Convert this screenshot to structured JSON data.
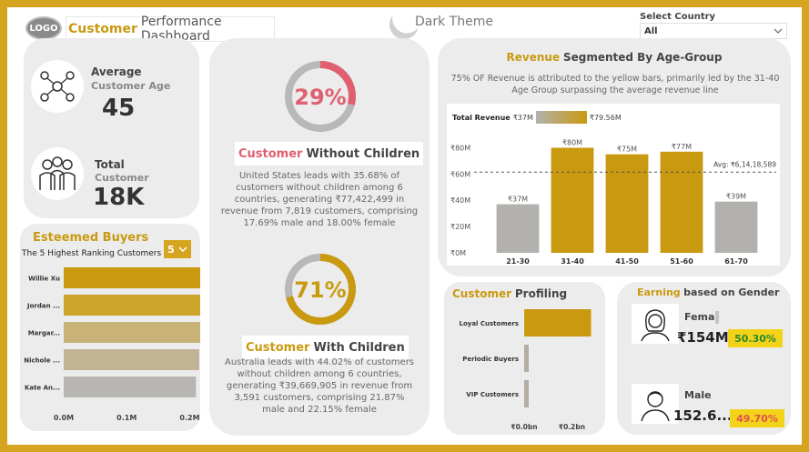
{
  "header": {
    "logo": "LOGO",
    "title_accent": "Customer",
    "title_rest": "Performance Dashboard",
    "theme_label": "Dark Theme",
    "country_label": "Select Country",
    "country_value": "All"
  },
  "age": {
    "avg_label1": "Average",
    "avg_label2": "Customer Age",
    "avg_value": "45",
    "total_label1": "Total",
    "total_label2": "Customer",
    "total_value": "18K"
  },
  "without_children": {
    "percent": "29%",
    "fraction": 0.29,
    "title_accent": "Customer",
    "title_rest": "Without Children",
    "desc": "United States leads with 35.68% of customers without children among 6 countries, generating ₹77,422,499 in revenue from 7,819 customers, comprising 17.69% male and 18.00% female"
  },
  "with_children": {
    "percent": "71%",
    "fraction": 0.71,
    "title_accent": "Customer",
    "title_rest": "With Children",
    "desc": "Australia leads with 44.02% of customers without children among 6 countries, generating ₹39,669,905 in revenue from 3,591 customers, comprising 21.87% male and 22.15% female"
  },
  "esteemed": {
    "title": "Esteemed Buyers",
    "subtitle": "The 5 Highest Ranking Customers",
    "top_n": "5"
  },
  "revenue": {
    "title_accent": "Revenue",
    "title_rest": "Segmented By Age-Group",
    "desc": "75% OF Revenue is attributed to the yellow bars, primarily led by the 31-40 Age Group surpassing the average revenue line",
    "legend_label": "Total Revenue",
    "legend_min": "₹37M",
    "legend_max": "₹79.56M",
    "avg_label": "Avg: ₹6,14,18,589"
  },
  "profiling": {
    "title_accent": "Customer",
    "title_rest": "Profiling"
  },
  "gender": {
    "title_accent": "Earning",
    "title_rest": "based on Gender",
    "female_label": "Femal",
    "female_value": "₹154M",
    "female_pct": "50.30%",
    "male_label": "Male",
    "male_value": "152.6...",
    "male_pct": "49.70%"
  },
  "colors": {
    "gold": "#c99a10",
    "grey_bar": "#b3b1ad",
    "frame": "#d6a520",
    "green_badge": "#f3d21a",
    "red_text": "#e25050"
  },
  "chart_data": [
    {
      "type": "bar",
      "categories": [
        "21-30",
        "31-40",
        "41-50",
        "51-60",
        "61-70"
      ],
      "values": [
        37,
        80,
        75,
        77,
        39
      ],
      "data_labels": [
        "₹37M",
        "₹80M",
        "₹75M",
        "₹77M",
        "₹39M"
      ],
      "average": 61.42,
      "ylim": [
        0,
        90
      ],
      "yticks": [
        "₹0M",
        "₹20M",
        "₹40M",
        "₹60M",
        "₹80M"
      ],
      "ytick_values": [
        0,
        20,
        40,
        60,
        80
      ],
      "highlight": [
        false,
        true,
        true,
        true,
        false
      ]
    },
    {
      "type": "bar",
      "orientation": "horizontal",
      "categories": [
        "Willie Xu",
        "Jordan ...",
        "Margar...",
        "Nichole ...",
        "Kate An..."
      ],
      "values": [
        0.235,
        0.23,
        0.22,
        0.215,
        0.21
      ],
      "xticks": [
        "0.0M",
        "0.1M",
        "0.2M"
      ],
      "xtick_values": [
        0,
        0.1,
        0.2
      ],
      "xlim": [
        0,
        0.26
      ]
    },
    {
      "type": "bar",
      "orientation": "horizontal",
      "categories": [
        "Loyal Customers",
        "Periodic Buyers",
        "VIP Customers"
      ],
      "values": [
        0.28,
        0.01,
        0.008
      ],
      "xticks": [
        "₹0.0bn",
        "₹0.2bn"
      ],
      "xtick_values": [
        0,
        0.2
      ],
      "xlim": [
        0,
        0.32
      ]
    }
  ]
}
